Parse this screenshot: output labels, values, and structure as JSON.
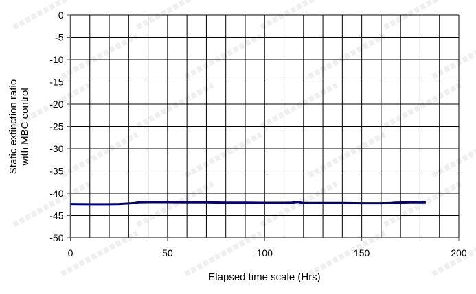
{
  "chart_data": {
    "type": "line",
    "title": "",
    "xlabel": "Elapsed time scale (Hrs)",
    "ylabel": [
      "Static extinction ratio",
      "with MBC control"
    ],
    "xlim": [
      0,
      200
    ],
    "ylim": [
      -50,
      0
    ],
    "xticks": [
      0,
      50,
      100,
      150,
      200
    ],
    "yticks": [
      0,
      -5,
      -10,
      -15,
      -20,
      -25,
      -30,
      -35,
      -40,
      -45,
      -50
    ],
    "grid": {
      "x_step": 10,
      "y_step": 5,
      "on": true
    },
    "series": [
      {
        "color": "#000080",
        "x": [
          0,
          10,
          20,
          25,
          30,
          33,
          35,
          40,
          50,
          60,
          70,
          80,
          90,
          100,
          110,
          114,
          117,
          120,
          130,
          140,
          150,
          160,
          165,
          167,
          175,
          183
        ],
        "y": [
          -42.4,
          -42.45,
          -42.45,
          -42.4,
          -42.3,
          -42.2,
          -42.05,
          -42.0,
          -42.0,
          -42.05,
          -42.05,
          -42.1,
          -42.1,
          -42.15,
          -42.15,
          -42.1,
          -41.95,
          -42.2,
          -42.2,
          -42.2,
          -42.25,
          -42.25,
          -42.2,
          -42.1,
          -42.05,
          -42.05
        ]
      }
    ]
  },
  "watermark": "苏州波弗光电科技有限公司"
}
